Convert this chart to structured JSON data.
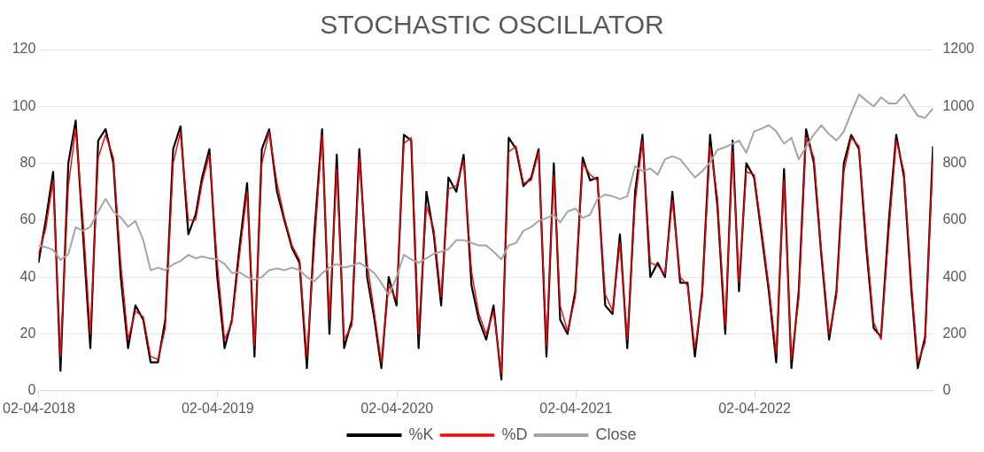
{
  "chart_data": {
    "type": "line",
    "title": "STOCHASTIC OSCILLATOR",
    "x": [
      "2018-04-01",
      "2018-04-16",
      "2018-05-01",
      "2018-05-16",
      "2018-06-01",
      "2018-06-16",
      "2018-07-01",
      "2018-07-16",
      "2018-08-01",
      "2018-08-16",
      "2018-09-01",
      "2018-09-16",
      "2018-10-01",
      "2018-10-16",
      "2018-11-01",
      "2018-11-16",
      "2018-12-01",
      "2018-12-16",
      "2019-01-01",
      "2019-01-16",
      "2019-02-01",
      "2019-02-16",
      "2019-03-01",
      "2019-03-16",
      "2019-04-01",
      "2019-04-16",
      "2019-05-01",
      "2019-05-16",
      "2019-06-01",
      "2019-06-16",
      "2019-07-01",
      "2019-07-16",
      "2019-08-01",
      "2019-08-16",
      "2019-09-01",
      "2019-09-16",
      "2019-10-01",
      "2019-10-16",
      "2019-11-01",
      "2019-11-16",
      "2019-12-01",
      "2019-12-16",
      "2020-01-01",
      "2020-01-16",
      "2020-02-01",
      "2020-02-16",
      "2020-03-01",
      "2020-03-16",
      "2020-04-01",
      "2020-04-16",
      "2020-05-01",
      "2020-05-16",
      "2020-06-01",
      "2020-06-16",
      "2020-07-01",
      "2020-07-16",
      "2020-08-01",
      "2020-08-16",
      "2020-09-01",
      "2020-09-16",
      "2020-10-01",
      "2020-10-16",
      "2020-11-01",
      "2020-11-16",
      "2020-12-01",
      "2020-12-16",
      "2021-01-01",
      "2021-01-16",
      "2021-02-01",
      "2021-02-16",
      "2021-03-01",
      "2021-03-16",
      "2021-04-01",
      "2021-04-16",
      "2021-05-01",
      "2021-05-16",
      "2021-06-01",
      "2021-06-16",
      "2021-07-01",
      "2021-07-16",
      "2021-08-01",
      "2021-08-16",
      "2021-09-01",
      "2021-09-16",
      "2021-10-01",
      "2021-10-16",
      "2021-11-01",
      "2021-11-16",
      "2021-12-01",
      "2021-12-16",
      "2022-01-01",
      "2022-01-16",
      "2022-02-01",
      "2022-02-16",
      "2022-03-01",
      "2022-03-16",
      "2022-04-01",
      "2022-04-16",
      "2022-05-01",
      "2022-05-16",
      "2022-06-01",
      "2022-06-16",
      "2022-07-01",
      "2022-07-16",
      "2022-08-01",
      "2022-08-16",
      "2022-09-01",
      "2022-09-16",
      "2022-10-01",
      "2022-10-16",
      "2022-11-01",
      "2022-11-16",
      "2022-12-01",
      "2022-12-16",
      "2023-01-01",
      "2023-01-16",
      "2023-02-01",
      "2023-02-16",
      "2023-03-01",
      "2023-03-16",
      "2023-04-01"
    ],
    "series": [
      {
        "name": "%K",
        "color": "#000000",
        "values": [
          45,
          60,
          77,
          7,
          80,
          95,
          55,
          15,
          88,
          92,
          80,
          40,
          15,
          30,
          25,
          10,
          10,
          25,
          85,
          93,
          55,
          62,
          75,
          85,
          40,
          15,
          25,
          50,
          73,
          12,
          85,
          92,
          70,
          60,
          50,
          45,
          8,
          55,
          92,
          20,
          83,
          15,
          25,
          85,
          40,
          25,
          8,
          40,
          30,
          90,
          88,
          15,
          70,
          55,
          30,
          75,
          70,
          83,
          37,
          25,
          18,
          30,
          4,
          89,
          85,
          72,
          75,
          85,
          12,
          80,
          25,
          20,
          35,
          82,
          74,
          75,
          30,
          27,
          55,
          15,
          70,
          90,
          40,
          45,
          40,
          70,
          38,
          38,
          12,
          35,
          90,
          65,
          20,
          88,
          35,
          80,
          75,
          55,
          35,
          10,
          78,
          8,
          35,
          92,
          80,
          48,
          18,
          35,
          80,
          90,
          85,
          50,
          22,
          19,
          60,
          90,
          75,
          35,
          8,
          19,
          86
        ]
      },
      {
        "name": "%D",
        "color": "#ff0000",
        "values": [
          48,
          57,
          74,
          12,
          72,
          92,
          60,
          20,
          82,
          90,
          82,
          45,
          18,
          28,
          26,
          12,
          11,
          22,
          80,
          91,
          60,
          60,
          73,
          83,
          45,
          18,
          24,
          47,
          70,
          16,
          80,
          91,
          73,
          61,
          51,
          46,
          12,
          50,
          90,
          25,
          78,
          18,
          23,
          82,
          45,
          27,
          10,
          37,
          32,
          87,
          89,
          20,
          65,
          57,
          33,
          71,
          72,
          81,
          42,
          27,
          20,
          28,
          6,
          84,
          86,
          73,
          74,
          84,
          16,
          76,
          30,
          21,
          33,
          80,
          76,
          74,
          34,
          28,
          52,
          18,
          66,
          88,
          45,
          44,
          41,
          67,
          40,
          37,
          15,
          33,
          86,
          68,
          23,
          84,
          38,
          77,
          76,
          57,
          37,
          13,
          74,
          11,
          32,
          89,
          82,
          50,
          20,
          33,
          77,
          89,
          86,
          53,
          24,
          18,
          56,
          88,
          77,
          38,
          10,
          17,
          82
        ]
      },
      {
        "name": "Close",
        "color": "#a5a5a5",
        "axis": "y2",
        "values": [
          511,
          505,
          495,
          460,
          480,
          575,
          563,
          577,
          630,
          675,
          630,
          610,
          577,
          597,
          530,
          424,
          433,
          424,
          445,
          456,
          478,
          466,
          472,
          466,
          462,
          446,
          414,
          417,
          400,
          390,
          400,
          424,
          430,
          424,
          433,
          424,
          400,
          385,
          413,
          433,
          446,
          433,
          440,
          450,
          433,
          413,
          380,
          336,
          400,
          478,
          462,
          450,
          466,
          482,
          489,
          498,
          530,
          530,
          520,
          511,
          511,
          489,
          462,
          511,
          520,
          563,
          576,
          597,
          608,
          619,
          592,
          630,
          641,
          608,
          619,
          674,
          690,
          684,
          674,
          684,
          790,
          772,
          782,
          760,
          814,
          825,
          814,
          782,
          750,
          772,
          804,
          847,
          857,
          869,
          880,
          837,
          912,
          922,
          934,
          912,
          869,
          890,
          814,
          857,
          902,
          934,
          902,
          880,
          912,
          977,
          1042,
          1020,
          1000,
          1032,
          1010,
          1010,
          1042,
          1000,
          967,
          960,
          993
        ]
      }
    ],
    "xlim": [
      "2018-04-01",
      "2023-04-01"
    ],
    "xticks": [
      {
        "value": "2018-04-02",
        "label": "02-04-2018"
      },
      {
        "value": "2019-04-02",
        "label": "02-04-2019"
      },
      {
        "value": "2020-04-02",
        "label": "02-04-2020"
      },
      {
        "value": "2021-04-02",
        "label": "02-04-2021"
      },
      {
        "value": "2022-04-02",
        "label": "02-04-2022"
      }
    ],
    "ylim": [
      0,
      120
    ],
    "yticks": [
      0,
      20,
      40,
      60,
      80,
      100,
      120
    ],
    "y2lim": [
      0,
      1200
    ],
    "y2ticks": [
      0,
      200,
      400,
      600,
      800,
      1000,
      1200
    ],
    "grid": "y",
    "legend": "bottom",
    "marker": "none",
    "line_style": "solid"
  }
}
